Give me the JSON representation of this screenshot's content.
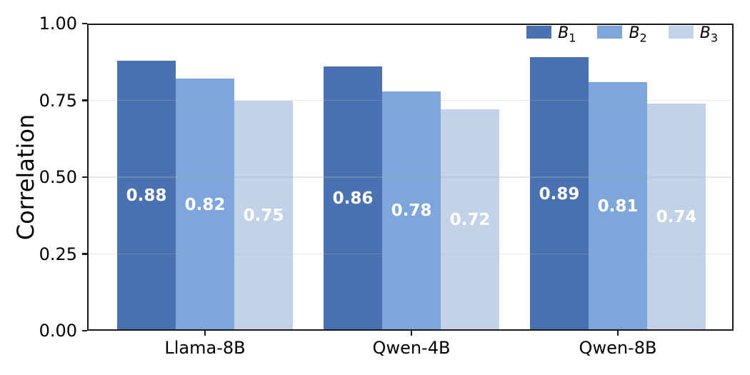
{
  "chart_data": {
    "type": "bar",
    "title": "",
    "xlabel": "",
    "ylabel": "Correlation",
    "categories": [
      "Llama-8B",
      "Qwen-4B",
      "Qwen-8B"
    ],
    "series": [
      {
        "name": "b1",
        "label_base": "B",
        "label_sub": "1",
        "color": "#4a72b2",
        "values": [
          0.88,
          0.86,
          0.89
        ]
      },
      {
        "name": "b2",
        "label_base": "B",
        "label_sub": "2",
        "color": "#7ea6da",
        "values": [
          0.82,
          0.78,
          0.81
        ]
      },
      {
        "name": "b3",
        "label_base": "B",
        "label_sub": "3",
        "color": "#c2d3e9",
        "values": [
          0.75,
          0.72,
          0.74
        ]
      }
    ],
    "bar_value_labels": [
      [
        "0.88",
        "0.86",
        "0.89"
      ],
      [
        "0.82",
        "0.78",
        "0.81"
      ],
      [
        "0.75",
        "0.72",
        "0.74"
      ]
    ],
    "ylim": [
      0.0,
      1.0
    ],
    "yticks": [
      0.0,
      0.25,
      0.5,
      0.75,
      1.0
    ],
    "ytick_labels": [
      "0.00",
      "0.25",
      "0.50",
      "0.75",
      "1.00"
    ],
    "grid": "horizontal",
    "legend_position": "upper-right",
    "value_label_color": "#ffffff",
    "spine_color": "#1a1a1a",
    "grid_color": "#b0b0b0",
    "background_color": "#ffffff"
  }
}
